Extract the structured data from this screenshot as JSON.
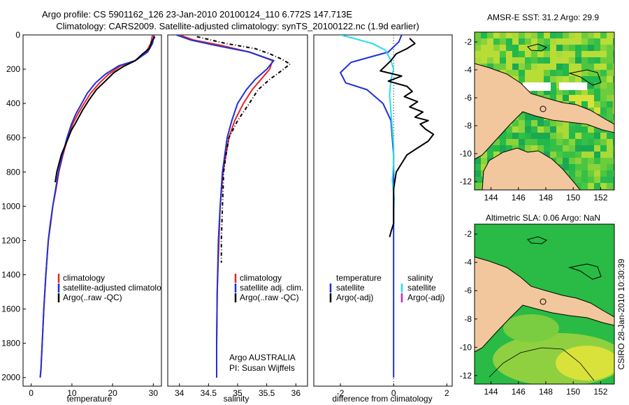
{
  "header": {
    "line1": "Argo profile: CS 5901162_126 23-Jan-2010 20100124_110 6.772S 147.713E",
    "line2": "Climatology: CARS2009. Satellite-adjusted climatology: synTS_20100122.nc (1.9d earlier)"
  },
  "colors": {
    "climatology": "#ee2222",
    "satellite": "#1f2fd8",
    "argo": "#000000",
    "salinity_satellite": "#22e0ea",
    "argo_adj_salinity": "#d020d0",
    "land": "#f2c79d",
    "ocean": "#22b84a"
  },
  "chart_data": [
    {
      "id": "temperature",
      "type": "line",
      "xlabel": "temperature",
      "xlim": [
        -2,
        32
      ],
      "xticks": [
        "0",
        "10",
        "20",
        "30"
      ],
      "ylim": [
        0,
        2050
      ],
      "yticks": [
        "0",
        "200",
        "400",
        "600",
        "800",
        "1000",
        "1200",
        "1400",
        "1600",
        "1800",
        "2000"
      ],
      "legend": [
        "climatology",
        "satellite-adjusted climatology",
        "Argo(..raw -QC)"
      ],
      "series": [
        {
          "name": "climatology",
          "color": "climatology",
          "dash": "",
          "x": [
            29.8,
            29.4,
            28.2,
            25.5,
            22.0,
            19.0,
            16.8,
            14.6,
            13.0,
            11.5,
            10.2,
            9.0,
            7.8,
            6.8,
            6.1,
            5.3,
            4.8,
            4.2,
            3.6,
            3.1,
            2.7,
            2.4,
            2.2
          ],
          "y": [
            0,
            50,
            100,
            150,
            180,
            230,
            280,
            340,
            400,
            460,
            520,
            600,
            700,
            800,
            900,
            1000,
            1100,
            1200,
            1400,
            1600,
            1800,
            1950,
            2000
          ]
        },
        {
          "name": "satellite-adjusted climatology",
          "color": "satellite",
          "dash": "",
          "x": [
            30.2,
            29.8,
            28.6,
            25.6,
            21.5,
            18.2,
            15.8,
            13.8,
            12.4,
            11.0,
            9.9,
            8.8,
            7.7,
            6.7,
            6.0,
            5.3,
            4.7,
            4.2,
            3.6,
            3.1,
            2.7,
            2.4,
            2.2
          ],
          "y": [
            0,
            50,
            100,
            150,
            180,
            230,
            280,
            340,
            400,
            460,
            520,
            600,
            700,
            800,
            900,
            1000,
            1100,
            1200,
            1400,
            1600,
            1800,
            1950,
            2000
          ]
        },
        {
          "name": "Argo(..raw -QC)",
          "color": "argo",
          "dash": "",
          "x": [
            30.4,
            29.6,
            29.0,
            27.4,
            25.6,
            22.6,
            20.3,
            18.2,
            16.0,
            14.2,
            12.6,
            11.0,
            9.8,
            8.8,
            7.4,
            6.3,
            5.9
          ],
          "y": [
            10,
            40,
            80,
            110,
            150,
            185,
            220,
            270,
            320,
            380,
            440,
            510,
            560,
            620,
            700,
            800,
            860
          ]
        }
      ]
    },
    {
      "id": "salinity",
      "type": "line",
      "xlabel": "salinity",
      "xlim": [
        33.8,
        36.2
      ],
      "xticks": [
        "34",
        "34.5",
        "35",
        "35.5",
        "36"
      ],
      "ylim": [
        0,
        2050
      ],
      "legend": [
        "climatology",
        "satellite adj. clim.",
        "Argo(..raw -QC)"
      ],
      "annotation": [
        "Argo AUSTRALIA",
        "PI: Susan Wijffels"
      ],
      "series": [
        {
          "name": "climatology",
          "color": "climatology",
          "dash": "",
          "x": [
            34.0,
            34.25,
            34.7,
            35.2,
            35.6,
            35.55,
            35.4,
            35.25,
            35.1,
            34.95,
            34.85,
            34.75,
            34.7,
            34.68,
            34.65,
            34.64,
            34.64
          ],
          "y": [
            0,
            30,
            60,
            100,
            150,
            200,
            260,
            320,
            400,
            500,
            600,
            800,
            1000,
            1200,
            1500,
            1800,
            2000
          ]
        },
        {
          "name": "satellite adj. clim.",
          "color": "satellite",
          "dash": "",
          "x": [
            33.95,
            34.2,
            34.6,
            35.2,
            35.62,
            35.5,
            35.3,
            35.15,
            35.0,
            34.9,
            34.82,
            34.74,
            34.7,
            34.67,
            34.65,
            34.64,
            34.64
          ],
          "y": [
            0,
            30,
            60,
            100,
            150,
            200,
            260,
            320,
            400,
            500,
            600,
            800,
            1000,
            1200,
            1500,
            1800,
            2000
          ]
        },
        {
          "name": "Argo(..raw -QC)",
          "color": "argo",
          "dash": "5,3,1,3",
          "x": [
            34.3,
            34.8,
            35.3,
            35.55,
            35.75,
            35.9,
            35.75,
            35.55,
            35.35,
            35.2,
            35.0,
            34.85,
            34.8,
            34.76,
            34.74,
            34.72,
            34.72
          ],
          "y": [
            10,
            50,
            80,
            110,
            140,
            170,
            210,
            260,
            320,
            400,
            500,
            600,
            700,
            800,
            1000,
            1200,
            1330
          ]
        }
      ]
    },
    {
      "id": "difference",
      "type": "line",
      "xlabel": "difference from climatology",
      "xlim": [
        -3,
        2.2
      ],
      "xticks": [
        "-2",
        "0",
        "2"
      ],
      "ylim": [
        0,
        2050
      ],
      "legend_titles": [
        "temperature",
        "salinity"
      ],
      "legend_left": [
        "satellite",
        "Argo(-adj)"
      ],
      "legend_right": [
        "satellite",
        "Argo(-adj)"
      ],
      "series": [
        {
          "name": "temperature satellite",
          "color": "satellite",
          "dash": "",
          "x": [
            0.3,
            0.2,
            -0.2,
            -1.6,
            -2.0,
            -1.8,
            -1.0,
            -0.4,
            -0.1,
            0.0,
            0.0,
            0.0,
            0.0
          ],
          "y": [
            0,
            40,
            100,
            160,
            220,
            280,
            320,
            400,
            500,
            700,
            1000,
            1500,
            2000
          ]
        },
        {
          "name": "salinity satellite",
          "color": "salinity_satellite",
          "dash": "",
          "x": [
            -2.0,
            -1.5,
            -0.8,
            -0.3,
            -0.1,
            0.0,
            -0.1,
            -0.15,
            -0.1,
            -0.05,
            0.0,
            0.0,
            -0.05,
            0.02,
            0.0
          ],
          "y": [
            0,
            20,
            50,
            90,
            150,
            200,
            260,
            350,
            450,
            550,
            650,
            750,
            850,
            950,
            1050
          ]
        },
        {
          "name": "temperature Argo(-adj)",
          "color": "argo",
          "dash": "",
          "x": [
            0.6,
            0.8,
            0.5,
            0.1,
            -0.1,
            -0.3,
            -0.5,
            0.3,
            -0.2,
            0.5,
            0.7,
            0.4,
            0.9,
            0.6,
            1.1,
            0.8,
            1.3,
            1.0,
            1.2,
            1.5,
            1.3,
            0.9,
            0.5,
            0.3,
            0.1,
            0.0,
            0.0,
            0.0,
            -0.1,
            -0.15
          ],
          "y": [
            20,
            50,
            80,
            110,
            150,
            180,
            210,
            240,
            270,
            300,
            330,
            360,
            390,
            420,
            450,
            480,
            500,
            520,
            550,
            580,
            620,
            660,
            700,
            750,
            800,
            900,
            1000,
            1100,
            1150,
            1180
          ]
        }
      ]
    }
  ],
  "maps": {
    "sst": {
      "title": "AMSR-E SST: 31.2 Argo: 29.9",
      "xticks": [
        "144",
        "146",
        "148",
        "150",
        "152"
      ],
      "yticks": [
        "-2",
        "-4",
        "-6",
        "-8",
        "-10",
        "-12"
      ]
    },
    "sla": {
      "title": "Altimetric SLA: 0.06 Argo: NaN",
      "xticks": [
        "144",
        "146",
        "148",
        "150",
        "152"
      ],
      "yticks": [
        "-2",
        "-4",
        "-6",
        "-8",
        "-10",
        "-12"
      ]
    }
  },
  "stamp": "CSIRO 28-Jan-2010 10:30:39"
}
